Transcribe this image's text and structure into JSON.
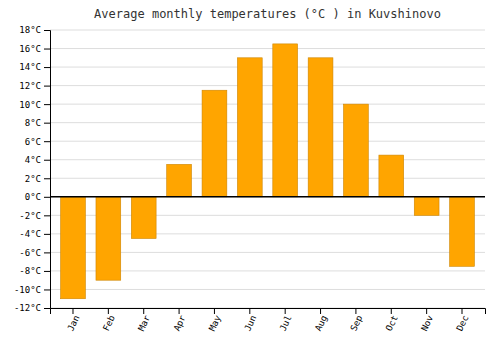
{
  "chart_data": {
    "type": "bar",
    "title": "Average monthly temperatures (°C ) in Kuvshinovo",
    "categories": [
      "Jan",
      "Feb",
      "Mar",
      "Apr",
      "May",
      "Jun",
      "Jul",
      "Aug",
      "Sep",
      "Oct",
      "Nov",
      "Dec"
    ],
    "values": [
      -11,
      -9,
      -4.5,
      3.5,
      11.5,
      15,
      16.5,
      15,
      10,
      4.5,
      -2,
      -7.5
    ],
    "color": "#FFA500",
    "ylim": [
      -12,
      18
    ],
    "yticks": [
      {
        "value": -12,
        "label": "-12°C"
      },
      {
        "value": -10,
        "label": "-10°C"
      },
      {
        "value": -8,
        "label": "-8°C"
      },
      {
        "value": -6,
        "label": "-6°C"
      },
      {
        "value": -4,
        "label": "-4°C"
      },
      {
        "value": -2,
        "label": "-2°C"
      },
      {
        "value": 0,
        "label": "0°C"
      },
      {
        "value": 2,
        "label": "2°C"
      },
      {
        "value": 4,
        "label": "4°C"
      },
      {
        "value": 6,
        "label": "6°C"
      },
      {
        "value": 8,
        "label": "8°C"
      },
      {
        "value": 10,
        "label": "10°C"
      },
      {
        "value": 12,
        "label": "12°C"
      },
      {
        "value": 14,
        "label": "14°C"
      },
      {
        "value": 16,
        "label": "16°C"
      },
      {
        "value": 18,
        "label": "18°C"
      }
    ],
    "grid": true
  }
}
